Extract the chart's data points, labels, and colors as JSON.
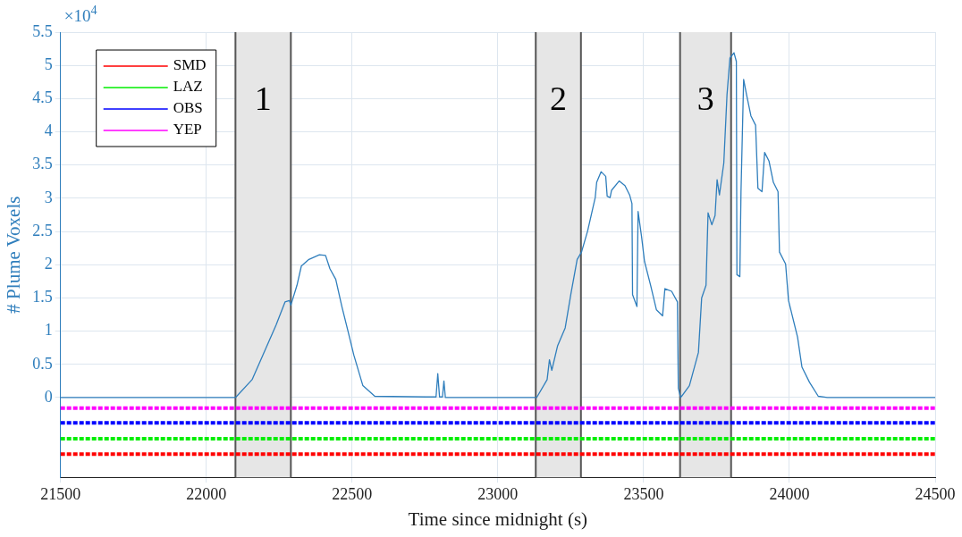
{
  "chart_data": {
    "type": "line",
    "xlabel": "Time since midnight (s)",
    "ylabel": "# Plume Voxels",
    "xlim": [
      21500,
      24500
    ],
    "xticks": [
      21500,
      22000,
      22500,
      23000,
      23500,
      24000,
      24500
    ],
    "ylim": [
      -1.2,
      5.5
    ],
    "yticks": [
      0,
      0.5,
      1,
      1.5,
      2,
      2.5,
      3,
      3.5,
      4,
      4.5,
      5,
      5.5
    ],
    "annotations": [
      "×10$^{4}$"
    ],
    "grid": true,
    "legend": "top left",
    "marker": "none",
    "bands": [
      {
        "axis": "x",
        "from": 22100,
        "to": 22290,
        "label": "1",
        "color": "#e6e6e6"
      },
      {
        "axis": "x",
        "from": 23130,
        "to": 23285,
        "label": "2",
        "color": "#e6e6e6"
      },
      {
        "axis": "x",
        "from": 23625,
        "to": 23800,
        "label": "3",
        "color": "#e6e6e6"
      }
    ],
    "series": [
      {
        "color": "#2f7ebc",
        "x": [
          21500,
          22100,
          22157,
          22198,
          22239,
          22270,
          22285,
          22290,
          22311,
          22326,
          22352,
          22388,
          22409,
          22424,
          22444,
          22465,
          22486,
          22506,
          22537,
          22578,
          22753,
          22788,
          22794,
          22800,
          22810,
          22815,
          22820,
          23133,
          23169,
          23177,
          23185,
          23205,
          23231,
          23251,
          23272,
          23287,
          23308,
          23334,
          23339,
          23354,
          23370,
          23375,
          23385,
          23390,
          23416,
          23436,
          23452,
          23460,
          23462,
          23477,
          23481,
          23493,
          23503,
          23524,
          23544,
          23565,
          23573,
          23596,
          23616,
          23619,
          23627,
          23657,
          23688,
          23699,
          23714,
          23721,
          23734,
          23745,
          23752,
          23760,
          23775,
          23786,
          23796,
          23810,
          23818,
          23820,
          23830,
          23834,
          23843,
          23853,
          23868,
          23884,
          23892,
          23906,
          23915,
          23930,
          23945,
          23961,
          23966,
          23987,
          23997,
          24028,
          24043,
          24069,
          24099,
          24130,
          24500
        ],
        "values": [
          0,
          0,
          0.27,
          0.68,
          1.09,
          1.44,
          1.46,
          1.39,
          1.69,
          1.98,
          2.08,
          2.15,
          2.14,
          1.94,
          1.78,
          1.37,
          1.0,
          0.64,
          0.18,
          0.02,
          0.01,
          0.01,
          0.36,
          0.01,
          0.01,
          0.25,
          0,
          0,
          0.27,
          0.57,
          0.41,
          0.78,
          1.05,
          1.57,
          2.08,
          2.19,
          2.51,
          3.01,
          3.24,
          3.4,
          3.33,
          3.03,
          3.01,
          3.12,
          3.26,
          3.19,
          3.05,
          2.92,
          1.55,
          1.37,
          2.8,
          2.42,
          2.05,
          1.69,
          1.32,
          1.23,
          1.64,
          1.6,
          1.44,
          0.14,
          0,
          0.18,
          0.68,
          1.5,
          1.69,
          2.78,
          2.6,
          2.74,
          3.28,
          3.05,
          3.53,
          4.56,
          5.11,
          5.19,
          5.06,
          1.85,
          1.82,
          3.1,
          4.79,
          4.56,
          4.24,
          4.1,
          3.15,
          3.1,
          3.69,
          3.56,
          3.24,
          3.1,
          2.19,
          2.01,
          1.46,
          0.91,
          0.46,
          0.23,
          0.02,
          0,
          0
        ]
      },
      {
        "name": "SMD",
        "color": "#ff0000",
        "line_style": "dashed",
        "x": [
          21500,
          24500
        ],
        "values": [
          -0.85,
          -0.85
        ]
      },
      {
        "name": "LAZ",
        "color": "#00ee00",
        "line_style": "dashed",
        "x": [
          21500,
          24500
        ],
        "values": [
          -0.62,
          -0.62
        ]
      },
      {
        "name": "OBS",
        "color": "#0000ff",
        "line_style": "dashed",
        "x": [
          21500,
          24500
        ],
        "values": [
          -0.38,
          -0.38
        ]
      },
      {
        "name": "YEP",
        "color": "#ff00ff",
        "line_style": "dashed",
        "x": [
          21500,
          24500
        ],
        "values": [
          -0.16,
          -0.16
        ]
      }
    ]
  }
}
